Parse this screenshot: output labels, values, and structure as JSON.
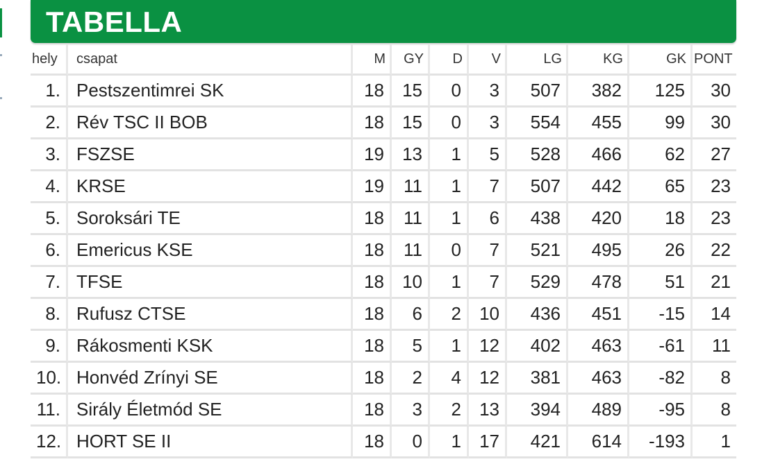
{
  "title": "TABELLA",
  "colors": {
    "accent": "#0a9142",
    "grid": "#e2e2e2"
  },
  "headers": {
    "rank": "hely",
    "team": "csapat",
    "m": "M",
    "gy": "GY",
    "d": "D",
    "v": "V",
    "lg": "LG",
    "kg": "KG",
    "gk": "GK",
    "pont": "PONT"
  },
  "rows": [
    {
      "rank": "1.",
      "team": "Pestszentimrei SK",
      "m": "18",
      "gy": "15",
      "d": "0",
      "v": "3",
      "lg": "507",
      "kg": "382",
      "gk": "125",
      "pont": "30"
    },
    {
      "rank": "2.",
      "team": "Rév TSC II BOB",
      "m": "18",
      "gy": "15",
      "d": "0",
      "v": "3",
      "lg": "554",
      "kg": "455",
      "gk": "99",
      "pont": "30"
    },
    {
      "rank": "3.",
      "team": "FSZSE",
      "m": "19",
      "gy": "13",
      "d": "1",
      "v": "5",
      "lg": "528",
      "kg": "466",
      "gk": "62",
      "pont": "27"
    },
    {
      "rank": "4.",
      "team": "KRSE",
      "m": "19",
      "gy": "11",
      "d": "1",
      "v": "7",
      "lg": "507",
      "kg": "442",
      "gk": "65",
      "pont": "23"
    },
    {
      "rank": "5.",
      "team": "Soroksári TE",
      "m": "18",
      "gy": "11",
      "d": "1",
      "v": "6",
      "lg": "438",
      "kg": "420",
      "gk": "18",
      "pont": "23"
    },
    {
      "rank": "6.",
      "team": "Emericus KSE",
      "m": "18",
      "gy": "11",
      "d": "0",
      "v": "7",
      "lg": "521",
      "kg": "495",
      "gk": "26",
      "pont": "22"
    },
    {
      "rank": "7.",
      "team": "TFSE",
      "m": "18",
      "gy": "10",
      "d": "1",
      "v": "7",
      "lg": "529",
      "kg": "478",
      "gk": "51",
      "pont": "21"
    },
    {
      "rank": "8.",
      "team": "Rufusz CTSE",
      "m": "18",
      "gy": "6",
      "d": "2",
      "v": "10",
      "lg": "436",
      "kg": "451",
      "gk": "-15",
      "pont": "14"
    },
    {
      "rank": "9.",
      "team": "Rákosmenti KSK",
      "m": "18",
      "gy": "5",
      "d": "1",
      "v": "12",
      "lg": "402",
      "kg": "463",
      "gk": "-61",
      "pont": "11"
    },
    {
      "rank": "10.",
      "team": "Honvéd Zrínyi SE",
      "m": "18",
      "gy": "2",
      "d": "4",
      "v": "12",
      "lg": "381",
      "kg": "463",
      "gk": "-82",
      "pont": "8"
    },
    {
      "rank": "11.",
      "team": "Sirály Életmód SE",
      "m": "18",
      "gy": "3",
      "d": "2",
      "v": "13",
      "lg": "394",
      "kg": "489",
      "gk": "-95",
      "pont": "8"
    },
    {
      "rank": "12.",
      "team": "HORT SE II",
      "m": "18",
      "gy": "0",
      "d": "1",
      "v": "17",
      "lg": "421",
      "kg": "614",
      "gk": "-193",
      "pont": "1"
    }
  ]
}
